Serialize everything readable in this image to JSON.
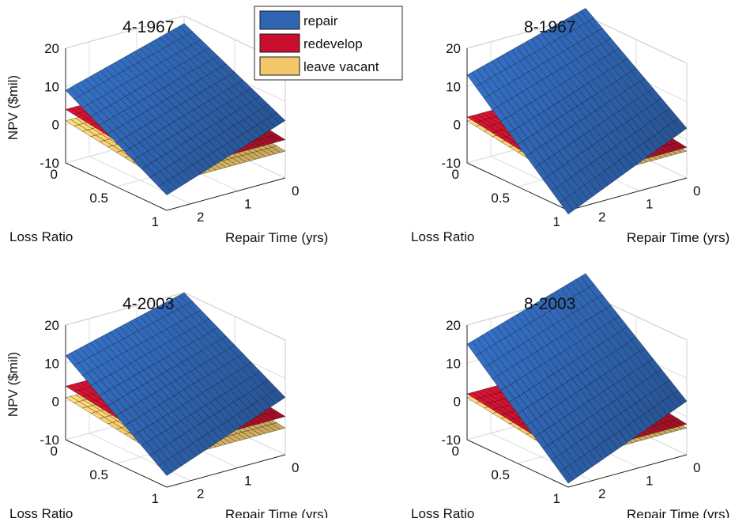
{
  "legend": {
    "items": [
      {
        "label": "repair",
        "color": "#2f65b3"
      },
      {
        "label": "redevelop",
        "color": "#c8102e"
      },
      {
        "label": "leave vacant",
        "color": "#f2c86b"
      }
    ]
  },
  "chart_data": [
    {
      "type": "surface",
      "title": "4-1967",
      "xlabel": "Repair Time (yrs)",
      "ylabel": "Loss Ratio",
      "zlabel": "NPV ($mil)",
      "x_ticks": [
        "0",
        "1",
        "2"
      ],
      "y_ticks": [
        "0",
        "0.5",
        "1"
      ],
      "z_ticks": [
        "20",
        "10",
        "0",
        "-10"
      ],
      "xlim": [
        0,
        2.5
      ],
      "ylim": [
        0,
        1
      ],
      "zlim": [
        -10,
        20
      ],
      "grid": true,
      "series": [
        {
          "name": "repair",
          "corners": {
            "rt0_lr0": 18,
            "rt0_lr1": 5,
            "rt2.5_lr0": 9,
            "rt2.5_lr1": -6
          }
        },
        {
          "name": "redevelop",
          "corners": {
            "rt0_lr0": 4,
            "rt0_lr1": 0,
            "rt2.5_lr0": 4,
            "rt2.5_lr1": 0
          }
        },
        {
          "name": "leave vacant",
          "corners": {
            "rt0_lr0": 1,
            "rt0_lr1": -3,
            "rt2.5_lr0": 1,
            "rt2.5_lr1": -3
          }
        }
      ]
    },
    {
      "type": "surface",
      "title": "8-1967",
      "xlabel": "Repair Time (yrs)",
      "ylabel": "Loss Ratio",
      "zlabel": "",
      "x_ticks": [
        "0",
        "1",
        "2"
      ],
      "y_ticks": [
        "0",
        "0.5",
        "1"
      ],
      "z_ticks": [
        "20",
        "10",
        "0",
        "-10"
      ],
      "xlim": [
        0,
        2.5
      ],
      "ylim": [
        0,
        1
      ],
      "zlim": [
        -10,
        20
      ],
      "grid": true,
      "series": [
        {
          "name": "repair",
          "corners": {
            "rt0_lr0": 22,
            "rt0_lr1": 3,
            "rt2.5_lr0": 13,
            "rt2.5_lr1": -11
          }
        },
        {
          "name": "redevelop",
          "corners": {
            "rt0_lr0": 2,
            "rt0_lr1": -2,
            "rt2.5_lr0": 2,
            "rt2.5_lr1": -2
          }
        },
        {
          "name": "leave vacant",
          "corners": {
            "rt0_lr0": 1,
            "rt0_lr1": -3,
            "rt2.5_lr0": 1,
            "rt2.5_lr1": -3
          }
        }
      ]
    },
    {
      "type": "surface",
      "title": "4-2003",
      "xlabel": "Repair Time (yrs)",
      "ylabel": "Loss Ratio",
      "zlabel": "NPV ($mil)",
      "x_ticks": [
        "0",
        "1",
        "2"
      ],
      "y_ticks": [
        "0",
        "0.5",
        "1"
      ],
      "z_ticks": [
        "20",
        "10",
        "0",
        "-10"
      ],
      "xlim": [
        0,
        2.5
      ],
      "ylim": [
        0,
        1
      ],
      "zlim": [
        -10,
        20
      ],
      "grid": true,
      "series": [
        {
          "name": "repair",
          "corners": {
            "rt0_lr0": 20,
            "rt0_lr1": 5,
            "rt2.5_lr0": 12,
            "rt2.5_lr1": -7
          }
        },
        {
          "name": "redevelop",
          "corners": {
            "rt0_lr0": 4,
            "rt0_lr1": 0,
            "rt2.5_lr0": 4,
            "rt2.5_lr1": 0
          }
        },
        {
          "name": "leave vacant",
          "corners": {
            "rt0_lr0": 1,
            "rt0_lr1": -3,
            "rt2.5_lr0": 1,
            "rt2.5_lr1": -3
          }
        }
      ]
    },
    {
      "type": "surface",
      "title": "8-2003",
      "xlabel": "Repair Time (yrs)",
      "ylabel": "Loss Ratio",
      "zlabel": "",
      "x_ticks": [
        "0",
        "1",
        "2"
      ],
      "y_ticks": [
        "0",
        "0.5",
        "1"
      ],
      "z_ticks": [
        "20",
        "10",
        "0",
        "-10"
      ],
      "xlim": [
        0,
        2.5
      ],
      "ylim": [
        0,
        1
      ],
      "zlim": [
        -10,
        20
      ],
      "grid": true,
      "series": [
        {
          "name": "repair",
          "corners": {
            "rt0_lr0": 25,
            "rt0_lr1": 4,
            "rt2.5_lr0": 15,
            "rt2.5_lr1": -9
          }
        },
        {
          "name": "redevelop",
          "corners": {
            "rt0_lr0": 2,
            "rt0_lr1": -2,
            "rt2.5_lr0": 2,
            "rt2.5_lr1": -2
          }
        },
        {
          "name": "leave vacant",
          "corners": {
            "rt0_lr0": 1,
            "rt0_lr1": -3,
            "rt2.5_lr0": 1,
            "rt2.5_lr1": -3
          }
        }
      ]
    }
  ]
}
